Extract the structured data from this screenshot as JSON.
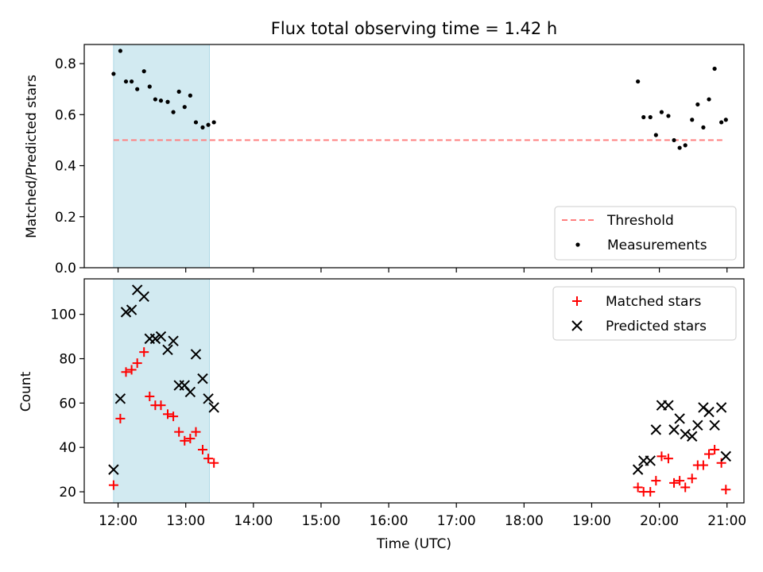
{
  "title": "Flux total observing time = 1.42 h",
  "chart_data": [
    {
      "type": "scatter",
      "panel": "top",
      "ylabel": "Matched/Predicted stars",
      "ylim": [
        0.0,
        0.875
      ],
      "yticks": [
        0.0,
        0.2,
        0.4,
        0.6,
        0.8
      ],
      "ytick_labels": [
        "0.0",
        "0.2",
        "0.4",
        "0.6",
        "0.8"
      ],
      "shaded_interval": {
        "x": [
          "11:56",
          "13:21"
        ],
        "color": "#add8e6"
      },
      "threshold": {
        "name": "Threshold",
        "value": 0.5,
        "x": [
          "11:56",
          "20:58"
        ],
        "color": "#ff7f7f",
        "style": "dashed"
      },
      "legend": {
        "position": "lower right",
        "entries": [
          "Threshold",
          "Measurements"
        ]
      },
      "series": [
        {
          "name": "Measurements",
          "marker": "dot",
          "color": "#000000",
          "x": [
            "11:56",
            "12:02",
            "12:07",
            "12:12",
            "12:17",
            "12:23",
            "12:28",
            "12:33",
            "12:38",
            "12:44",
            "12:49",
            "12:54",
            "12:59",
            "13:04",
            "13:09",
            "13:15",
            "13:20",
            "13:25",
            "19:41",
            "19:46",
            "19:52",
            "19:57",
            "20:02",
            "20:08",
            "20:13",
            "20:18",
            "20:23",
            "20:29",
            "20:34",
            "20:39",
            "20:44",
            "20:49",
            "20:55",
            "20:59"
          ],
          "y": [
            0.76,
            0.85,
            0.73,
            0.73,
            0.7,
            0.77,
            0.71,
            0.66,
            0.655,
            0.65,
            0.61,
            0.69,
            0.63,
            0.675,
            0.57,
            0.55,
            0.56,
            0.57,
            0.73,
            0.59,
            0.59,
            0.52,
            0.61,
            0.595,
            0.5,
            0.47,
            0.48,
            0.58,
            0.64,
            0.55,
            0.66,
            0.78,
            0.57,
            0.58
          ]
        }
      ]
    },
    {
      "type": "scatter",
      "panel": "bottom",
      "xlabel": "Time (UTC)",
      "ylabel": "Count",
      "xlim": [
        "11:30",
        "21:15"
      ],
      "xticks": [
        "12:00",
        "13:00",
        "14:00",
        "15:00",
        "16:00",
        "17:00",
        "18:00",
        "19:00",
        "20:00",
        "21:00"
      ],
      "ylim": [
        15,
        116
      ],
      "yticks": [
        20,
        40,
        60,
        80,
        100
      ],
      "ytick_labels": [
        "20",
        "40",
        "60",
        "80",
        "100"
      ],
      "shaded_interval": {
        "x": [
          "11:56",
          "13:21"
        ],
        "color": "#add8e6"
      },
      "legend": {
        "position": "upper right",
        "entries": [
          "Matched stars",
          "Predicted stars"
        ]
      },
      "series": [
        {
          "name": "Matched stars",
          "marker": "+",
          "color": "#ff0000",
          "x": [
            "11:56",
            "12:02",
            "12:07",
            "12:12",
            "12:17",
            "12:23",
            "12:28",
            "12:33",
            "12:38",
            "12:44",
            "12:49",
            "12:54",
            "12:59",
            "13:04",
            "13:09",
            "13:15",
            "13:20",
            "13:25",
            "19:41",
            "19:46",
            "19:52",
            "19:57",
            "20:02",
            "20:08",
            "20:13",
            "20:18",
            "20:23",
            "20:29",
            "20:34",
            "20:39",
            "20:44",
            "20:49",
            "20:55",
            "20:59"
          ],
          "y": [
            23,
            53,
            74,
            75,
            78,
            83,
            63,
            59,
            59,
            55,
            54,
            47,
            43,
            44,
            47,
            39,
            35,
            33,
            22,
            20,
            20,
            25,
            36,
            35,
            24,
            25,
            22,
            26,
            32,
            32,
            37,
            39,
            33,
            21
          ]
        },
        {
          "name": "Predicted stars",
          "marker": "x",
          "color": "#000000",
          "x": [
            "11:56",
            "12:02",
            "12:07",
            "12:12",
            "12:17",
            "12:23",
            "12:28",
            "12:33",
            "12:38",
            "12:44",
            "12:49",
            "12:54",
            "12:59",
            "13:04",
            "13:09",
            "13:15",
            "13:20",
            "13:25",
            "19:41",
            "19:46",
            "19:52",
            "19:57",
            "20:02",
            "20:08",
            "20:13",
            "20:18",
            "20:23",
            "20:29",
            "20:34",
            "20:39",
            "20:44",
            "20:49",
            "20:55",
            "20:59"
          ],
          "y": [
            30,
            62,
            101,
            102,
            111,
            108,
            89,
            89,
            90,
            84,
            88,
            68,
            68,
            65,
            82,
            71,
            62,
            58,
            30,
            34,
            34,
            48,
            59,
            59,
            48,
            53,
            46,
            45,
            50,
            58,
            56,
            50,
            58,
            36
          ]
        }
      ]
    }
  ]
}
